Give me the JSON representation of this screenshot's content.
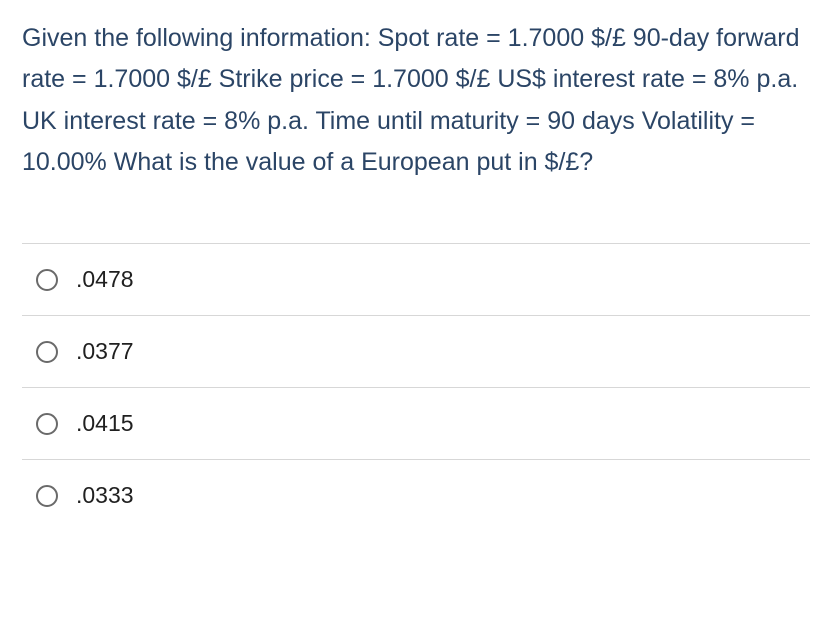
{
  "question": {
    "text": "Given the following information: Spot rate = 1.7000 $/£ 90-day forward rate = 1.7000 $/£ Strike price = 1.7000 $/£ US$ interest rate = 8% p.a. UK interest rate = 8% p.a. Time until maturity = 90 days Volatility = 10.00% What is the value of a European put in $/£?",
    "text_color": "#2b4566",
    "text_fontsize": 25,
    "line_height": 1.65
  },
  "options": [
    {
      "label": ".0478"
    },
    {
      "label": ".0377"
    },
    {
      "label": ".0415"
    },
    {
      "label": ".0333"
    }
  ],
  "styling": {
    "background_color": "#ffffff",
    "option_text_color": "#202020",
    "option_fontsize": 23,
    "radio_border_color": "#6a6a6a",
    "divider_color": "#d7d7d7",
    "radio_size": 22
  }
}
